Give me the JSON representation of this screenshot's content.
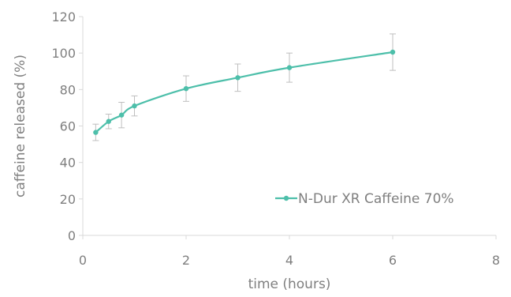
{
  "chart_data": {
    "type": "line",
    "title": "",
    "xlabel": "time (hours)",
    "ylabel": "caffeine released (%)",
    "xlim": [
      0,
      8
    ],
    "ylim": [
      0,
      120
    ],
    "xticks": [
      0,
      2,
      4,
      6,
      8
    ],
    "yticks": [
      0,
      20,
      40,
      60,
      80,
      100,
      120
    ],
    "grid": false,
    "legend_position": "lower-right",
    "series": [
      {
        "name": "N-Dur XR Caffeine 70%",
        "color": "#4dbfaa",
        "smooth": true,
        "points": [
          {
            "x": 0.25,
            "y": 56.5,
            "err": 4.5
          },
          {
            "x": 0.5,
            "y": 62.5,
            "err": 4.0
          },
          {
            "x": 0.75,
            "y": 66.0,
            "err": 7.0
          },
          {
            "x": 1.0,
            "y": 71.0,
            "err": 5.5
          },
          {
            "x": 2.0,
            "y": 80.5,
            "err": 7.0
          },
          {
            "x": 3.0,
            "y": 86.5,
            "err": 7.5
          },
          {
            "x": 4.0,
            "y": 92.0,
            "err": 8.0
          },
          {
            "x": 6.0,
            "y": 100.5,
            "err": 10.0
          }
        ]
      }
    ]
  }
}
